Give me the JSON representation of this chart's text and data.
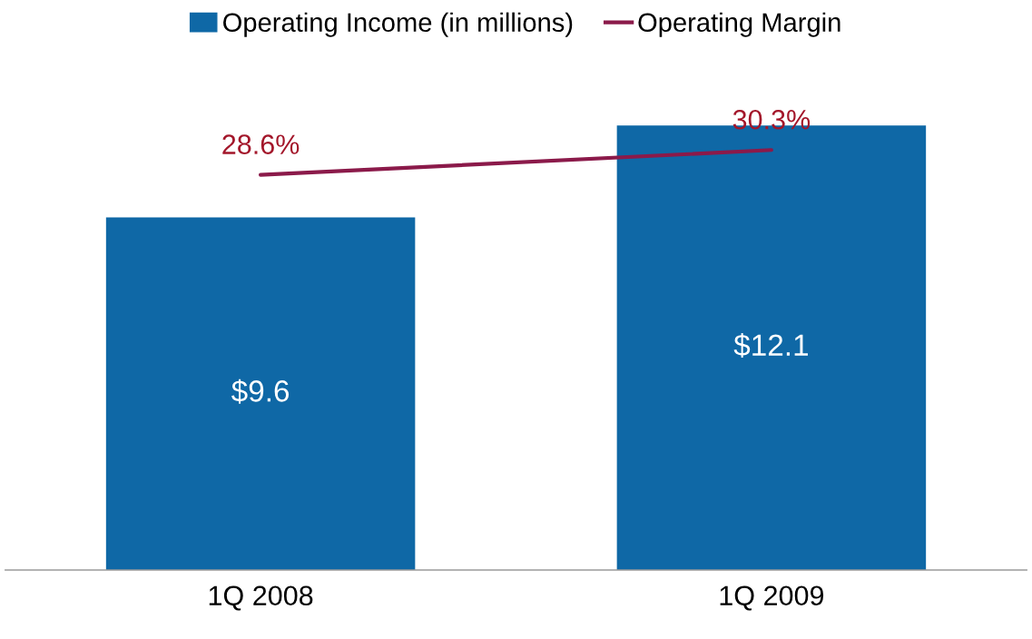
{
  "chart_data": {
    "type": "bar",
    "categories": [
      "1Q 2008",
      "1Q 2009"
    ],
    "series": [
      {
        "name": "Operating Income (in millions)",
        "color": "#0f68a6",
        "values": [
          9.6,
          12.1
        ],
        "value_labels": [
          "$9.6",
          "$12.1"
        ]
      },
      {
        "name": "Operating Margin",
        "type": "line",
        "axis": "y2",
        "color": "#8b1a4a",
        "values": [
          28.6,
          30.3
        ],
        "value_labels": [
          "28.6%",
          "30.3%"
        ]
      }
    ],
    "tick_labels": "x",
    "grid": false,
    "legend": "top",
    "marker": "none",
    "line_style": "solid"
  }
}
